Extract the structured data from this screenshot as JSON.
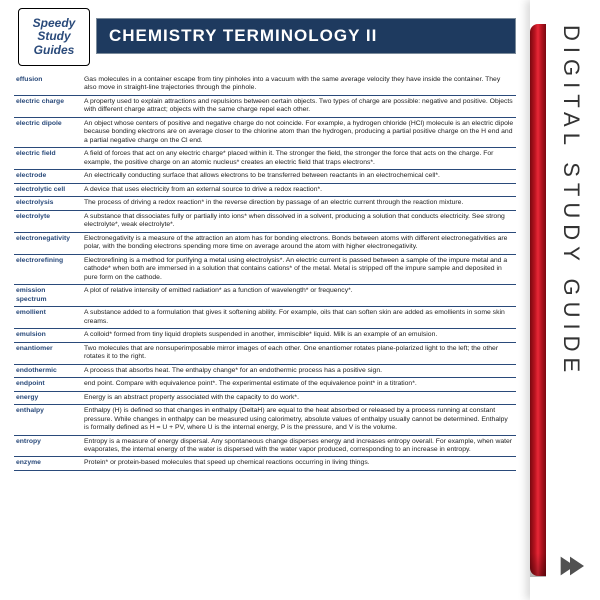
{
  "brand": {
    "line1": "Speedy",
    "line2": "Study",
    "line3": "Guides"
  },
  "title": "CHEMISTRY TERMINOLOGY II",
  "spine_text": "DIGITAL STUDY GUIDE",
  "colors": {
    "header_bg": "#1e3a5f",
    "term_color": "#2a4a7a",
    "red_tab": "#b81420",
    "rule": "#2a4a7a"
  },
  "terms": [
    {
      "t": "effusion",
      "d": "Gas molecules in a container escape from tiny pinholes into a vacuum with the same average velocity they have inside the container. They also move in straight-line trajectories through the pinhole."
    },
    {
      "t": "electric charge",
      "d": "A property used to explain attractions and repulsions between certain objects. Two types of charge are possible: negative and positive. Objects with different charge attract; objects with the same charge repel each other."
    },
    {
      "t": "electric dipole",
      "d": "An object whose centers of positive and negative charge do not coincide. For example, a hydrogen chloride (HCl) molecule is an electric dipole because bonding electrons are on average closer to the chlorine atom than the hydrogen, producing a partial positive charge on the H end and a partial negative charge on the Cl end."
    },
    {
      "t": "electric field",
      "d": "A field of forces that act on any electric charge* placed within it. The stronger the field, the stronger the force that acts on the charge. For example, the positive charge on an atomic nucleus* creates an electric field that traps electrons*."
    },
    {
      "t": "electrode",
      "d": "An electrically conducting surface that allows electrons to be transferred between reactants in an electrochemical cell*."
    },
    {
      "t": "electrolytic cell",
      "d": "A device that uses electricity from an external source to drive a redox reaction*."
    },
    {
      "t": "electrolysis",
      "d": "The process of driving a redox reaction* in the reverse direction by passage of an electric current through the reaction mixture."
    },
    {
      "t": "electrolyte",
      "d": "A substance that dissociates fully or partially into ions* when dissolved in a solvent, producing a solution that conducts electricity. See strong electrolyte*, weak electrolyte*."
    },
    {
      "t": "electronegativity",
      "d": "Electronegativity is a measure of the attraction an atom has for bonding electrons. Bonds between atoms with different electronegativities are polar, with the bonding electrons spending more time on average around the atom with higher electronegativity."
    },
    {
      "t": "electrorefining",
      "d": "Electrorefining is a method for purifying a metal using electrolysis*. An electric current is passed between a sample of the impure metal and a cathode* when both are immersed in a solution that contains cations* of the metal. Metal is stripped off the impure sample and deposited in pure form on the cathode."
    },
    {
      "t": "emission spectrum",
      "d": "A plot of relative intensity of emitted radiation* as a function of wavelength* or frequency*."
    },
    {
      "t": "emollient",
      "d": "A substance added to a formulation that gives it softening ability. For example, oils that can soften skin are added as emollients in some skin creams."
    },
    {
      "t": "emulsion",
      "d": "A colloid* formed from tiny liquid droplets suspended in another, immiscible* liquid. Milk is an example of an emulsion."
    },
    {
      "t": "enantiomer",
      "d": "Two molecules that are nonsuperimposable mirror images of each other. One enantiomer rotates plane-polarized light to the left; the other rotates it to the right."
    },
    {
      "t": "endothermic",
      "d": "A process that absorbs heat. The enthalpy change* for an endothermic process has a positive sign."
    },
    {
      "t": "endpoint",
      "d": "end point. Compare with equivalence point*.  The experimental estimate of the equivalence point* in a titration*."
    },
    {
      "t": "energy",
      "d": "Energy is an abstract property associated with the capacity to do work*."
    },
    {
      "t": "enthalpy",
      "d": "Enthalpy (H) is defined so that changes in enthalpy (DeltaH) are equal to the heat absorbed or released by a process running at constant pressure. While changes in enthalpy can be measured using calorimetry, absolute values of enthalpy usually cannot be determined. Enthalpy is formally defined as H = U + PV, where U is the internal energy, P is the pressure, and V is the volume."
    },
    {
      "t": "entropy",
      "d": "Entropy is a measure of energy dispersal. Any spontaneous change disperses energy and increases entropy overall. For example, when water evaporates, the internal energy of the water is dispersed with the water vapor produced, corresponding to an increase in entropy."
    },
    {
      "t": "enzyme",
      "d": "Protein* or protein-based molecules that speed up chemical reactions occurring in living things."
    }
  ]
}
